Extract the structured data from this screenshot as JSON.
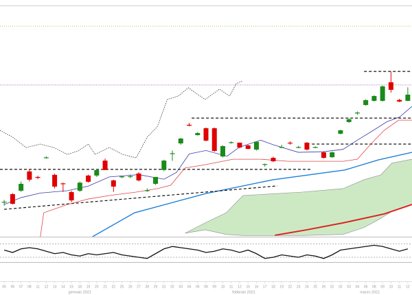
{
  "chart_data": [
    {
      "type": "candlestick",
      "categories": [
        "05",
        "06",
        "07",
        "08",
        "11",
        "12",
        "13",
        "14",
        "15",
        "18",
        "19",
        "20",
        "21",
        "22",
        "25",
        "26",
        "27",
        "28",
        "29",
        "01",
        "02",
        "03",
        "04",
        "05",
        "08",
        "09",
        "10",
        "11",
        "12",
        "15",
        "16",
        "17",
        "18",
        "19",
        "22",
        "23",
        "24",
        "25",
        "26",
        "01",
        "02",
        "03",
        "04",
        "05",
        "08",
        "09",
        "10",
        "11",
        "12"
      ],
      "x_groups": [
        {
          "label": "gennaio 2021",
          "first": 0,
          "last": 18
        },
        {
          "label": "febbraio 2021",
          "first": 19,
          "last": 38
        },
        {
          "label": "marzo 2021",
          "first": 39,
          "last": 48
        }
      ],
      "xlim": [
        -0.5,
        48.5
      ],
      "ylim": [
        0,
        100
      ],
      "up_color": "#1a8a1a",
      "down_color": "#e00000",
      "open": [
        15,
        18.5,
        20,
        28.4,
        26,
        34.3,
        26.9,
        23.2,
        19.4,
        20,
        26.6,
        26.6,
        33.1,
        24.5,
        26,
        26,
        27.5,
        20,
        23,
        29,
        36.1,
        40.6,
        48.7,
        44.2,
        47.2,
        47.2,
        34.9,
        40.9,
        40.9,
        39.7,
        37.9,
        31.3,
        34.3,
        38.8,
        40.9,
        38.8,
        40.9,
        38.8,
        36.7,
        34.6,
        44.8,
        49.9,
        53.7,
        57.3,
        59.1,
        59.1,
        67.2,
        59.5,
        59.1
      ],
      "high": [
        16,
        19,
        24,
        29.5,
        26.5,
        35,
        27.5,
        23.5,
        20,
        24,
        27,
        29.5,
        34,
        24.8,
        26.5,
        27,
        28,
        21,
        26,
        33.5,
        37.5,
        43,
        49.5,
        45.5,
        47.5,
        47.5,
        39.8,
        41.5,
        41,
        40,
        41.5,
        31.8,
        34.8,
        40,
        41.5,
        39.5,
        41.2,
        39.3,
        37.2,
        37,
        46.5,
        51.5,
        54.5,
        59.8,
        61.5,
        65.8,
        71.9,
        60,
        65
      ],
      "low": [
        13.5,
        14,
        19.5,
        24,
        25,
        34,
        21,
        19.5,
        15,
        19.5,
        23.5,
        26,
        29,
        19.5,
        25.5,
        25.5,
        24,
        19.5,
        22.5,
        28.5,
        33,
        40,
        48,
        44,
        41.5,
        37,
        34.5,
        40.5,
        38.5,
        38,
        37.5,
        30.5,
        32.5,
        38.5,
        40,
        38.5,
        37.5,
        38.5,
        34,
        34.3,
        44.5,
        49.5,
        53,
        57,
        58.8,
        58.8,
        62.7,
        58.5,
        59
      ],
      "close": [
        15.2,
        14.3,
        23,
        24.8,
        25.6,
        34.5,
        21.8,
        23,
        15.8,
        23.5,
        23.9,
        29,
        29,
        21.8,
        26.2,
        26.3,
        24.5,
        20.2,
        26,
        33.1,
        36.3,
        42.7,
        48.3,
        45.1,
        41.8,
        37.3,
        39.4,
        41.1,
        38.8,
        38.2,
        41.3,
        31.6,
        32.8,
        39,
        40.6,
        39,
        37.9,
        39,
        34.3,
        36.7,
        46.3,
        51.1,
        54,
        59.4,
        61.2,
        65.4,
        63.9,
        58.8,
        61.8
      ],
      "cloud": {
        "color": "#bfe3b5",
        "edge": "#8a8a8a",
        "x": [
          21.5,
          23.9,
          26.4,
          28.4,
          35.4,
          40.3,
          42.8,
          44.8,
          46.1,
          48.5
        ],
        "upper": [
          1.5,
          6,
          10.4,
          17.9,
          19.4,
          20.9,
          24.8,
          26.9,
          32,
          33.7
        ],
        "lower": [
          1.5,
          3,
          1,
          0.5,
          0.5,
          1,
          4,
          8,
          11,
          14
        ]
      },
      "series": [
        {
          "color": "#dd2222",
          "width": 2,
          "dash": "none",
          "x": [
            32.2,
            36,
            40.3,
            45.2,
            48.5
          ],
          "values": [
            0.6,
            3,
            6,
            9.9,
            14
          ]
        },
        {
          "color": "#1e7fd8",
          "width": 1.4,
          "dash": "none",
          "x": [
            10.5,
            15.5,
            24,
            32,
            40.5,
            44.5,
            48.5
          ],
          "values": [
            0,
            10.4,
            18.8,
            24.8,
            29,
            33.4,
            36.7
          ]
        },
        {
          "color": "#77bb33",
          "width": 0.8,
          "dash": "1 2",
          "x": [
            -0.5,
            48.5
          ],
          "values": [
            91.6,
            91.6
          ]
        },
        {
          "color": "#8a3d9a",
          "width": 0.8,
          "dash": "1 1.5",
          "x": [
            -0.5,
            48.5
          ],
          "values": [
            66,
            66
          ]
        },
        {
          "color": "#111111",
          "width": 1.2,
          "dash": "4 3",
          "x": [
            -0.5,
            36.6
          ],
          "values": [
            29.3,
            29.3
          ]
        },
        {
          "color": "#111111",
          "width": 1.2,
          "dash": "4 3",
          "x": [
            22.3,
            48.5
          ],
          "values": [
            51.6,
            51.6
          ]
        },
        {
          "color": "#111111",
          "width": 1.2,
          "dash": "4 3",
          "x": [
            36.6,
            48.5
          ],
          "values": [
            40.3,
            40.3
          ]
        },
        {
          "color": "#111111",
          "width": 1.2,
          "dash": "4 3",
          "x": [
            42.8,
            48.5
          ],
          "values": [
            71.9,
            71.9
          ]
        },
        {
          "color": "#111111",
          "width": 1.2,
          "dash": "4 3",
          "x": [
            0,
            32.5
          ],
          "values": [
            11.9,
            22.1
          ]
        },
        {
          "color": "#3a3aa8",
          "width": 0.8,
          "dash": "none",
          "x": [
            0,
            2,
            4.3,
            7.5,
            10,
            12.5,
            16,
            19,
            20.5,
            22,
            24,
            26.5,
            28,
            30.5,
            32,
            35,
            38,
            40.3,
            42,
            44,
            45.5,
            47,
            48.5
          ],
          "values": [
            14,
            17,
            19,
            20,
            22,
            26,
            27,
            25,
            28,
            36,
            37.5,
            35,
            39,
            42,
            40,
            36.7,
            37,
            38,
            42,
            46.5,
            50,
            52,
            56.7
          ]
        },
        {
          "color": "#e04444",
          "width": 0.8,
          "dash": "none",
          "x": [
            4.3,
            4.7,
            7.5,
            10,
            12.5,
            15.7,
            18.2,
            19.8,
            21.5,
            23.9,
            27.2,
            30.5,
            33.8,
            40.3,
            42,
            43.6,
            45.2,
            46.9,
            48.5
          ],
          "values": [
            0,
            10.4,
            14,
            16.4,
            17.9,
            19.4,
            20.9,
            22.4,
            29.9,
            31.3,
            33.7,
            33.7,
            32.8,
            32.8,
            33.7,
            40.3,
            46.3,
            50.7,
            50.7
          ]
        },
        {
          "color": "#333333",
          "width": 0.8,
          "dash": "1.5 1.5",
          "x": [
            -0.5,
            1,
            2.6,
            4.3,
            5.9,
            7.5,
            8.8,
            10,
            10.8,
            12.5,
            14.1,
            15.7,
            17,
            18.2,
            19.4,
            20.7,
            21.9,
            22.7,
            23.9,
            25.6,
            26.8,
            27.6,
            28.4
          ],
          "values": [
            46.3,
            43.3,
            38.8,
            40.3,
            38.8,
            35.8,
            37.3,
            40.3,
            35.8,
            38.8,
            35.8,
            34.3,
            43.3,
            47.8,
            59.7,
            61.2,
            64.8,
            62.7,
            59.7,
            64.2,
            61.2,
            66.6,
            67.8
          ]
        }
      ]
    },
    {
      "type": "line",
      "color": "#111111",
      "ylim": [
        -1,
        1
      ],
      "levels": [
        0.5,
        -0.6
      ],
      "values": [
        0.0,
        -0.2,
        0.1,
        0.2,
        0.1,
        -0.1,
        -0.3,
        -0.2,
        -0.4,
        -0.5,
        -0.3,
        -0.4,
        -0.3,
        -0.2,
        -0.4,
        -0.5,
        -0.6,
        -0.7,
        -0.3,
        0.1,
        0.3,
        0.2,
        0.1,
        0.0,
        -0.2,
        -0.1,
        0.1,
        0.0,
        -0.2,
        0.0,
        -0.3,
        -0.7,
        -0.6,
        -0.4,
        -0.5,
        -0.6,
        -0.4,
        -0.5,
        -0.7,
        -0.4,
        0.0,
        0.1,
        0.2,
        0.3,
        0.4,
        0.3,
        0.1,
        -0.1,
        0.1
      ]
    }
  ]
}
